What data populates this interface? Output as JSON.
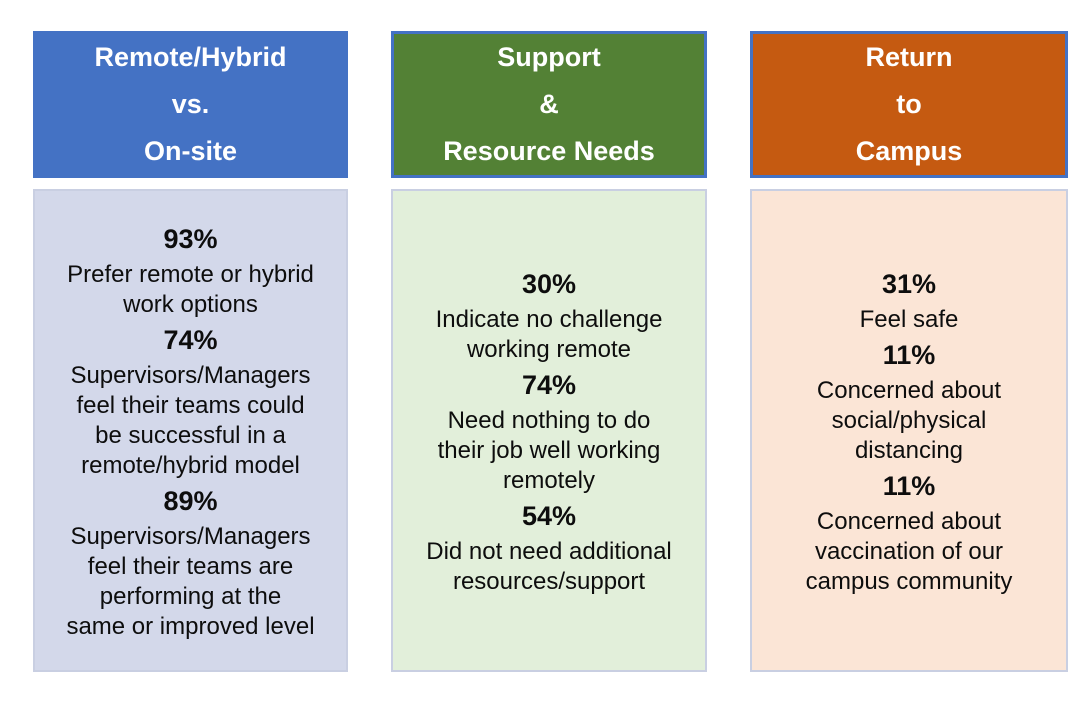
{
  "slide": {
    "background": "#FFFFFF"
  },
  "palette": {
    "header_blue": "#4472C4",
    "header_green": "#538135",
    "header_orange": "#C55A11",
    "header_border": "#4472C4",
    "header_text": "#FFFFFF",
    "body_lavender": "#D3D8EA",
    "body_light_green": "#E2EFDA",
    "body_light_peach": "#FBE5D6",
    "body_border": "#C9CFE2",
    "body_text": "#0D0D0D"
  },
  "columns": [
    {
      "id": "remote-hybrid-vs-onsite",
      "header": {
        "lines": [
          "Remote/Hybrid",
          "vs.",
          "On-site"
        ],
        "background": "#4472C4"
      },
      "body": {
        "background": "#D3D8EA",
        "stats": [
          {
            "value": "93%",
            "label": "Prefer remote or hybrid\nwork options"
          },
          {
            "value": "74%",
            "label": "Supervisors/Managers\nfeel their teams could\nbe successful in a\nremote/hybrid model"
          },
          {
            "value": "89%",
            "label": "Supervisors/Managers\nfeel their teams are\nperforming at the\nsame or improved level"
          }
        ]
      }
    },
    {
      "id": "support-resource-needs",
      "header": {
        "lines": [
          "Support",
          "&",
          "Resource Needs"
        ],
        "background": "#538135"
      },
      "body": {
        "background": "#E2EFDA",
        "stats": [
          {
            "value": "30%",
            "label": "Indicate no challenge\nworking remote"
          },
          {
            "value": "74%",
            "label": "Need nothing to do\ntheir job well working\nremotely"
          },
          {
            "value": "54%",
            "label": "Did not need additional\nresources/support"
          }
        ]
      }
    },
    {
      "id": "return-to-campus",
      "header": {
        "lines": [
          "Return",
          "to",
          "Campus"
        ],
        "background": "#C55A11"
      },
      "body": {
        "background": "#FBE5D6",
        "stats": [
          {
            "value": "31%",
            "label": "Feel safe"
          },
          {
            "value": "11%",
            "label": "Concerned about\nsocial/physical\ndistancing"
          },
          {
            "value": "11%",
            "label": "Concerned about\nvaccination of our\ncampus community"
          }
        ]
      }
    }
  ]
}
